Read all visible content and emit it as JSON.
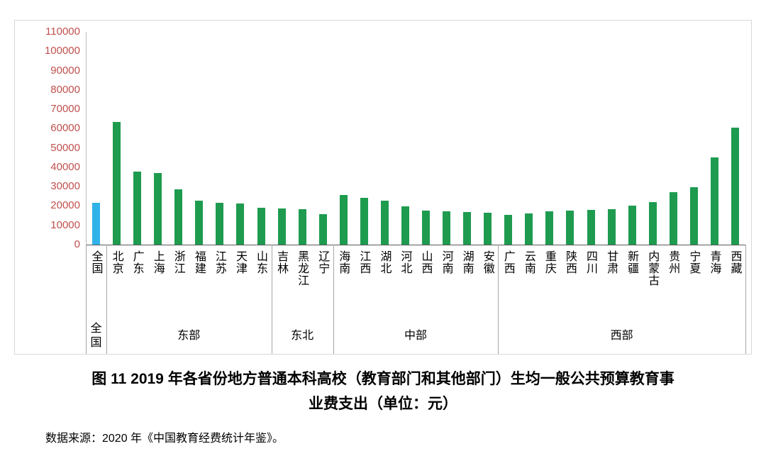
{
  "chart_data": {
    "type": "bar",
    "title_line1": "图 11  2019 年各省份地方普通本科高校（教育部门和其他部门）生均一般公共预算教育事",
    "title_line2": "业费支出（单位：元）",
    "source": "数据来源：2020 年《中国教育经费统计年鉴》。",
    "ylim": [
      0,
      110000
    ],
    "yticks": [
      0,
      10000,
      20000,
      30000,
      40000,
      50000,
      60000,
      70000,
      80000,
      90000,
      100000,
      110000
    ],
    "grid": false,
    "legend": "none",
    "categories": [
      "全国",
      "北京",
      "广东",
      "上海",
      "浙江",
      "福建",
      "江苏",
      "天津",
      "山东",
      "吉林",
      "黑龙江",
      "辽宁",
      "海南",
      "江西",
      "湖北",
      "河北",
      "山西",
      "河南",
      "湖南",
      "安徽",
      "广西",
      "云南",
      "重庆",
      "陕西",
      "四川",
      "甘肃",
      "新疆",
      "内蒙古",
      "贵州",
      "宁夏",
      "青海",
      "西藏"
    ],
    "values": [
      21600,
      63400,
      37800,
      37000,
      28600,
      22700,
      21600,
      21300,
      19100,
      18700,
      18300,
      15800,
      25700,
      24200,
      22700,
      19800,
      17600,
      17200,
      16900,
      16500,
      15400,
      16100,
      17200,
      17600,
      18000,
      18300,
      20200,
      22000,
      27100,
      29700,
      45100,
      60500
    ],
    "groups": [
      {
        "label": "全国",
        "count": 1
      },
      {
        "label": "东部",
        "count": 8
      },
      {
        "label": "东北",
        "count": 3
      },
      {
        "label": "中部",
        "count": 8
      },
      {
        "label": "西部",
        "count": 12
      }
    ],
    "highlight_index": 0,
    "colors": {
      "bar_national": "#2FB3E8",
      "bar_province": "#1E9B4F",
      "ytick_color": "#C0504D",
      "axis_color": "#595959",
      "separator_color": "#A6A6A6",
      "frame_border": "#D9D9D9"
    }
  }
}
